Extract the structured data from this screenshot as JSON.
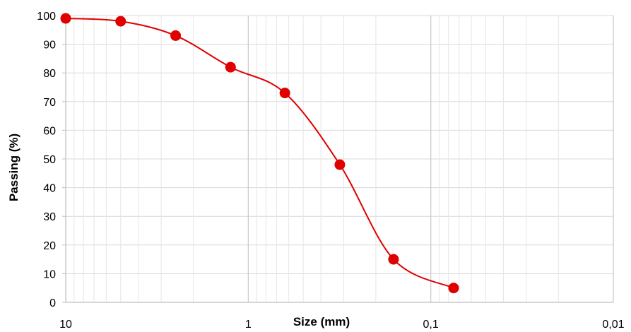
{
  "chart_data": {
    "type": "line",
    "xlabel": "Size (mm)",
    "ylabel": "Passing (%)",
    "x_scale": "log",
    "x_reversed": true,
    "xlim": [
      10,
      0.01
    ],
    "ylim": [
      0,
      100
    ],
    "x_major_ticks": [
      10,
      1,
      0.1,
      0.01
    ],
    "x_tick_labels": [
      "10",
      "1",
      "0,1",
      "0,01"
    ],
    "y_ticks": [
      0,
      10,
      20,
      30,
      40,
      50,
      60,
      70,
      80,
      90,
      100
    ],
    "y_tick_labels": [
      "0",
      "10",
      "20",
      "30",
      "40",
      "50",
      "60",
      "70",
      "80",
      "90",
      "100"
    ],
    "grid": true,
    "legend": false,
    "series": [
      {
        "x": [
          10,
          5,
          2.5,
          1.25,
          0.63,
          0.315,
          0.16,
          0.075
        ],
        "y": [
          99,
          98,
          93,
          82,
          73,
          48,
          15,
          5
        ],
        "color": "#e00000",
        "marker": "circle",
        "smooth": true
      }
    ]
  }
}
